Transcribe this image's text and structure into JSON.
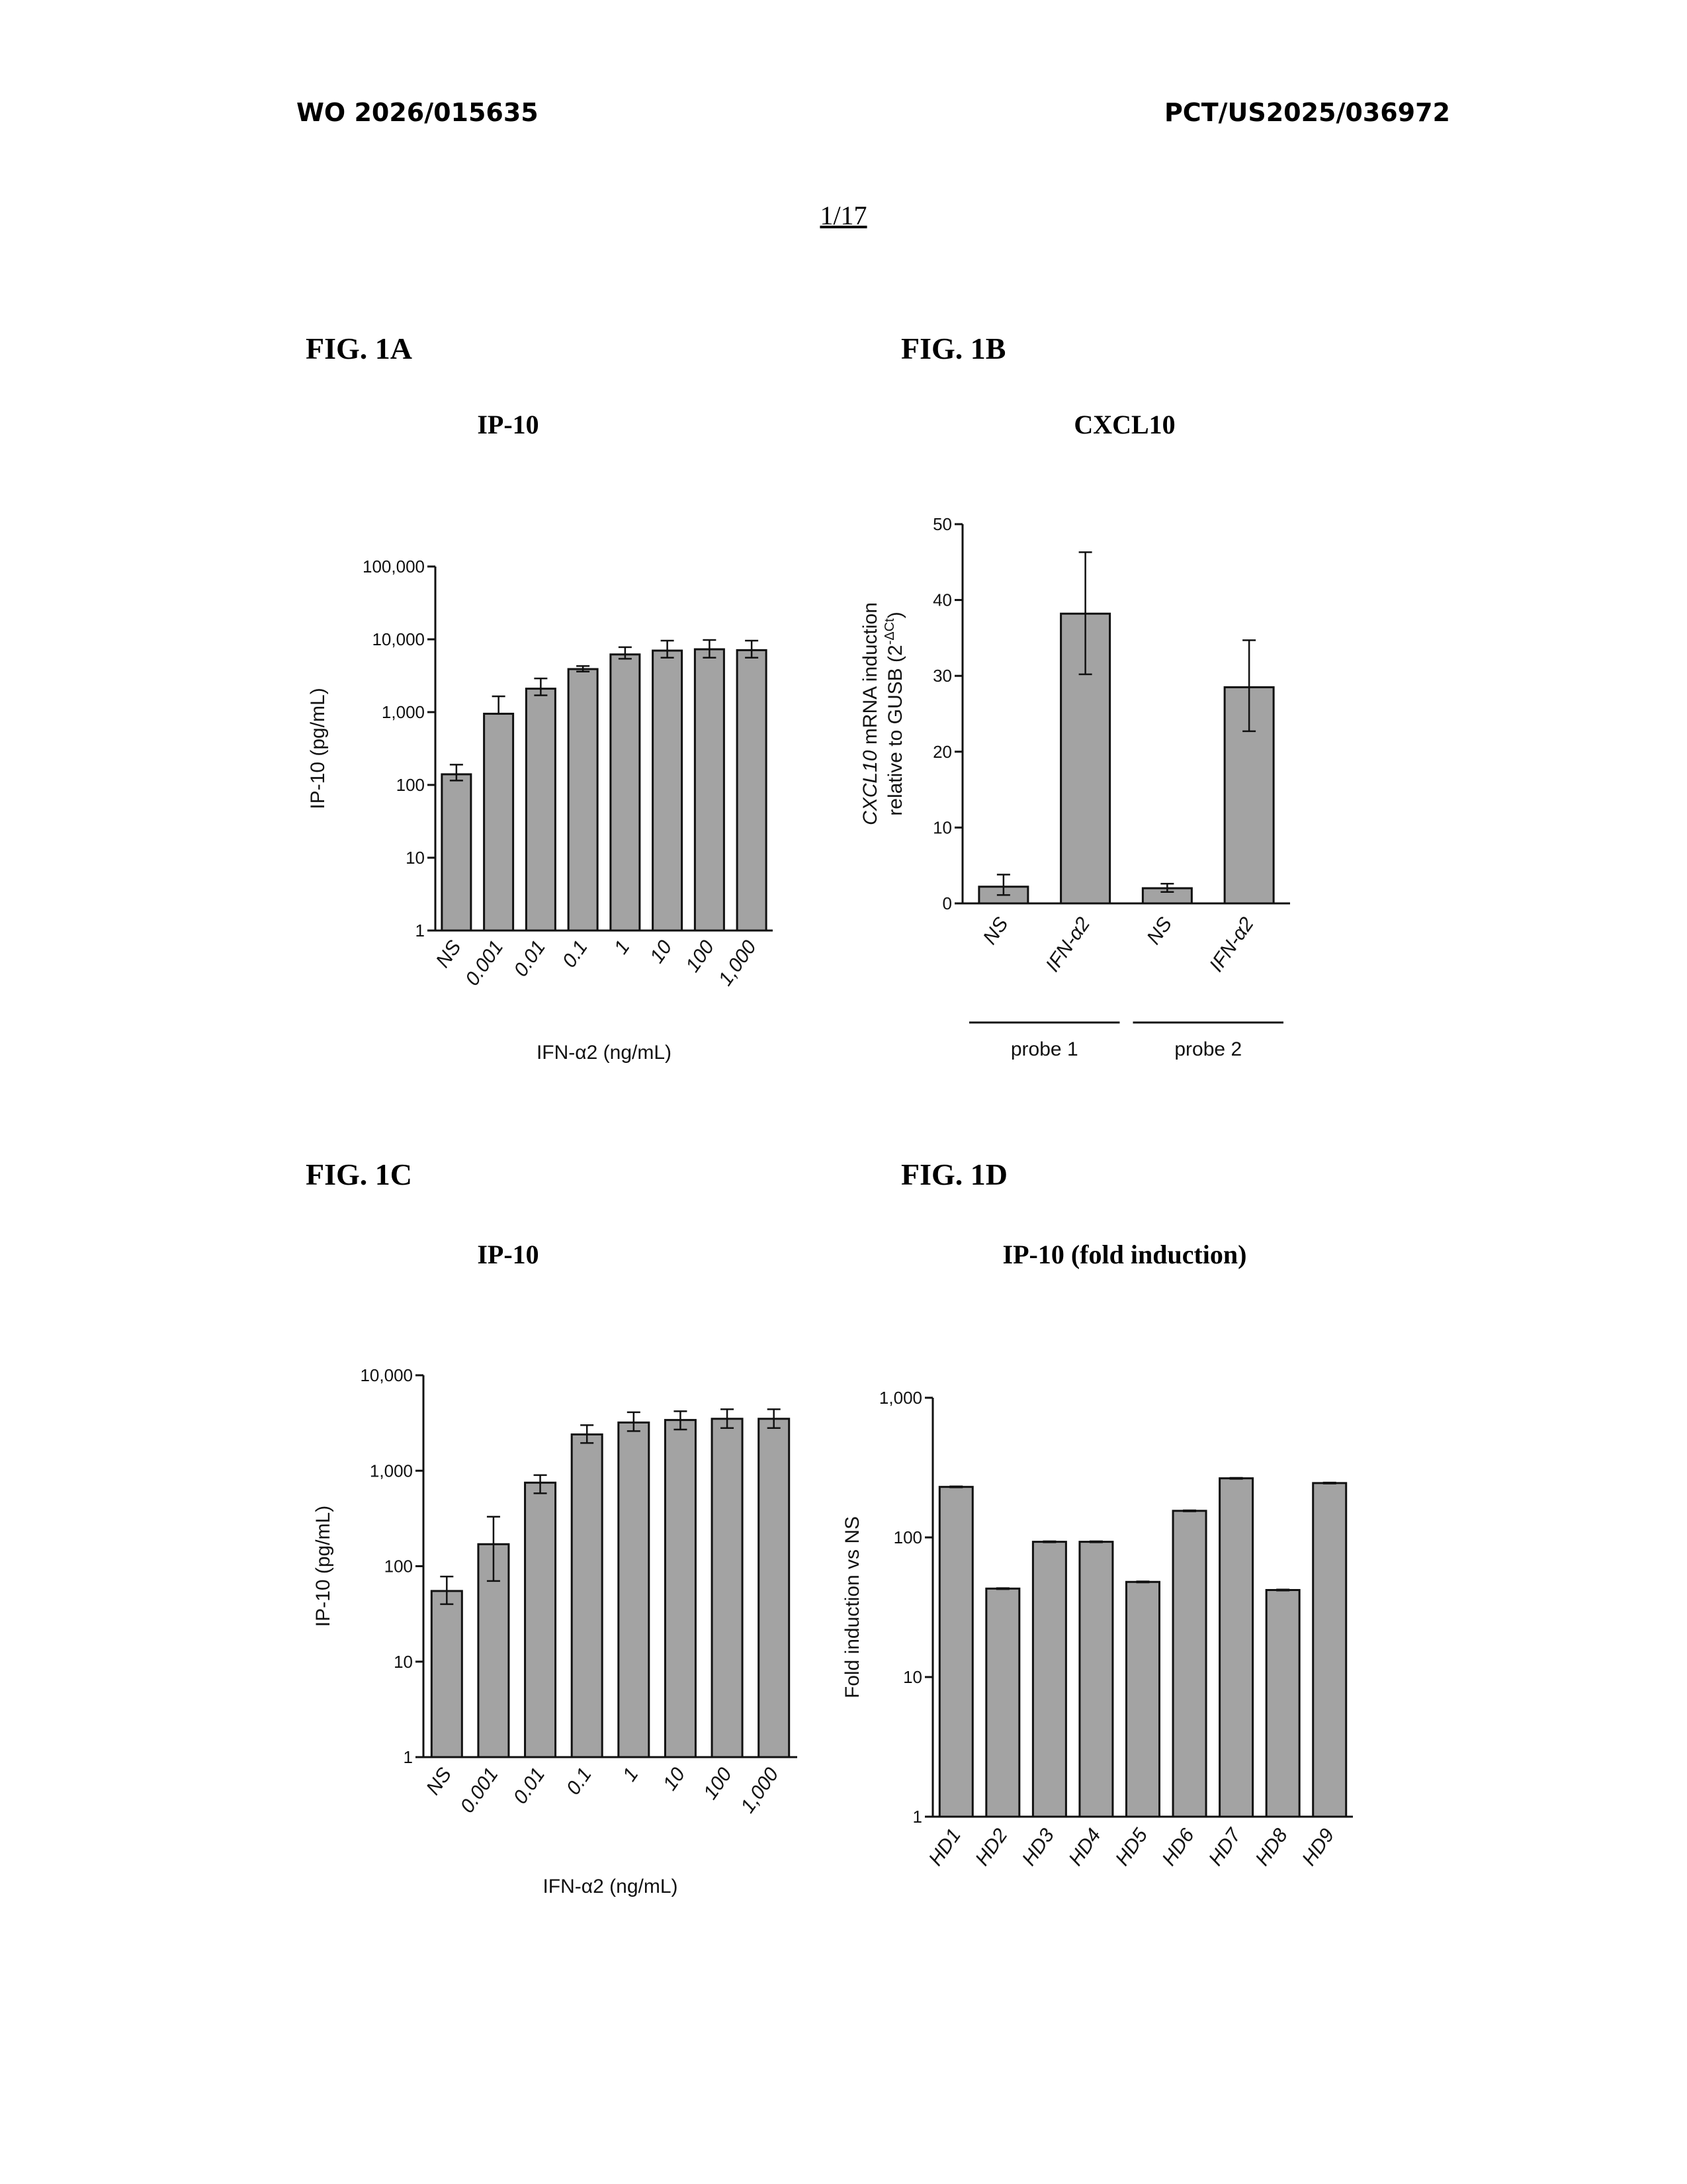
{
  "header": {
    "left": "WO 2026/015635",
    "right": "PCT/US2025/036972",
    "page": "1/17"
  },
  "colors": {
    "bar_fill": "#a3a3a3",
    "bar_stroke": "#111111",
    "axis": "#111111"
  },
  "figures": [
    {
      "label": "FIG. 1A",
      "title": "IP-10"
    },
    {
      "label": "FIG. 1B",
      "title": "CXCL10"
    },
    {
      "label": "FIG. 1C",
      "title": "IP-10"
    },
    {
      "label": "FIG. 1D",
      "title": "IP-10 (fold induction)"
    }
  ],
  "chart_data": [
    {
      "id": "1A",
      "type": "bar",
      "scale": "log",
      "ylim": [
        1,
        100000
      ],
      "yticks": [
        "1",
        "10",
        "100",
        "1,000",
        "10,000",
        "100,000"
      ],
      "ylabel": "IP-10 (pg/mL)",
      "xlabel": "IFN-α2 (ng/mL)",
      "categories": [
        "NS",
        "0.001",
        "0.01",
        "0.1",
        "1",
        "10",
        "100",
        "1,000"
      ],
      "values": [
        140,
        950,
        2100,
        3900,
        6200,
        7000,
        7300,
        7100
      ],
      "err_hi": [
        190,
        1650,
        2900,
        4300,
        7800,
        9600,
        9800,
        9600
      ],
      "err_lo": [
        115,
        950,
        1700,
        3600,
        5400,
        5600,
        5600,
        5600
      ]
    },
    {
      "id": "1B",
      "type": "bar",
      "scale": "linear",
      "ylim": [
        0,
        50
      ],
      "yticks": [
        "0",
        "10",
        "20",
        "30",
        "40",
        "50"
      ],
      "ylabel_parts": [
        "CXCL10",
        " mRNA induction",
        "relative to GUSB (2",
        "-ΔCt",
        ")"
      ],
      "categories": [
        "NS",
        "IFN-α2",
        "NS",
        "IFN-α2"
      ],
      "groups": [
        "probe 1",
        "probe 2"
      ],
      "values": [
        2.2,
        38.2,
        2.0,
        28.5
      ],
      "err_hi": [
        3.8,
        46.3,
        2.6,
        34.7
      ],
      "err_lo": [
        1.1,
        30.2,
        1.5,
        22.7
      ]
    },
    {
      "id": "1C",
      "type": "bar",
      "scale": "log",
      "ylim": [
        1,
        10000
      ],
      "yticks": [
        "1",
        "10",
        "100",
        "1,000",
        "10,000"
      ],
      "ylabel": "IP-10 (pg/mL)",
      "xlabel": "IFN-α2 (ng/mL)",
      "categories": [
        "NS",
        "0.001",
        "0.01",
        "0.1",
        "1",
        "10",
        "100",
        "1,000"
      ],
      "values": [
        55,
        170,
        750,
        2400,
        3200,
        3400,
        3500,
        3500
      ],
      "err_hi": [
        78,
        330,
        900,
        3000,
        4100,
        4200,
        4400,
        4400
      ],
      "err_lo": [
        40,
        70,
        580,
        1950,
        2600,
        2700,
        2800,
        2800
      ]
    },
    {
      "id": "1D",
      "type": "bar",
      "scale": "log",
      "ylim": [
        1,
        1000
      ],
      "yticks": [
        "1",
        "10",
        "100",
        "1,000"
      ],
      "ylabel": "Fold induction vs NS",
      "categories": [
        "HD1",
        "HD2",
        "HD3",
        "HD4",
        "HD5",
        "HD6",
        "HD7",
        "HD8",
        "HD9"
      ],
      "values": [
        230,
        43,
        93,
        93,
        48,
        155,
        265,
        42,
        245
      ]
    }
  ]
}
